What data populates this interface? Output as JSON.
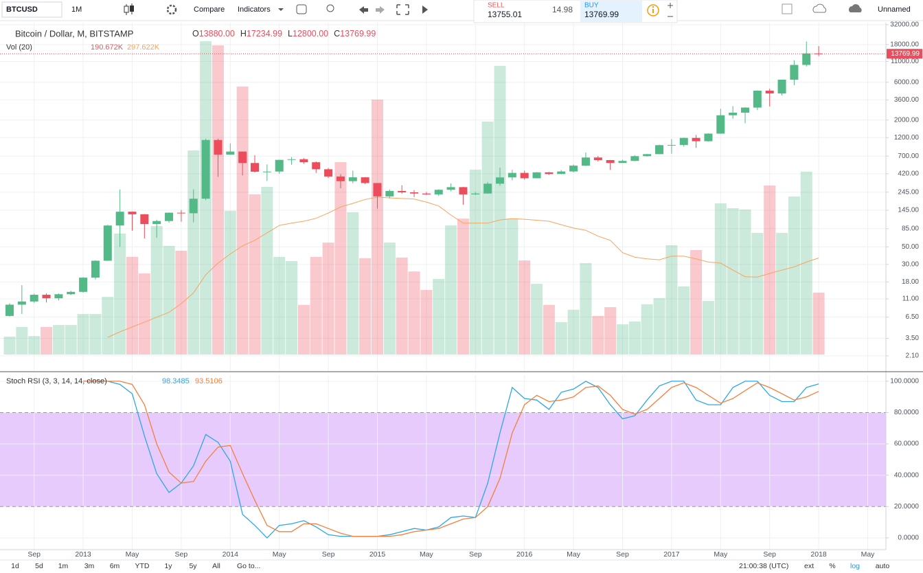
{
  "toolbar": {
    "symbol": "BTCUSD",
    "interval": "1M",
    "compare": "Compare",
    "indicators": "Indicators",
    "sell_label": "SELL",
    "sell_price": "13755.01",
    "spread": "14.98",
    "buy_label": "BUY",
    "buy_price": "13769.99",
    "layout_name": "Unnamed"
  },
  "bottom_bar": {
    "ranges": [
      "1d",
      "5d",
      "1m",
      "3m",
      "6m",
      "YTD",
      "1y",
      "5y",
      "All"
    ],
    "goto": "Go to...",
    "clock": "21:00:38 (UTC)",
    "options": [
      "ext",
      "%",
      "log",
      "auto"
    ]
  },
  "chart_data": [
    {
      "type": "candlestick",
      "title": "Bitcoin / Dollar, M, BITSTAMP",
      "categories": [
        null,
        null,
        "Sep",
        null,
        null,
        null,
        "2013",
        null,
        null,
        null,
        "May",
        null,
        null,
        null,
        "Sep",
        null,
        null,
        null,
        "2014",
        null,
        null,
        null,
        "May",
        null,
        null,
        null,
        "Sep",
        null,
        null,
        null,
        "2015",
        null,
        null,
        null,
        "May",
        null,
        null,
        null,
        "Sep",
        null,
        null,
        null,
        "2016",
        null,
        null,
        null,
        "May",
        null,
        null,
        null,
        "Sep",
        null,
        null,
        null,
        "2017",
        null,
        null,
        null,
        "May",
        null,
        null,
        null,
        "Sep",
        null,
        null,
        null,
        "2018",
        null,
        null,
        null,
        "May",
        null
      ],
      "open": [
        6.7,
        9.3,
        10.2,
        12.4,
        11.2,
        12.6,
        13.5,
        20.4,
        33.4,
        93,
        139,
        129,
        97,
        106,
        135,
        133,
        203,
        1120,
        732,
        800,
        573,
        445,
        447,
        628,
        640,
        586,
        478,
        387,
        338,
        378,
        320,
        217,
        254,
        244,
        236,
        230,
        263,
        284,
        230,
        236,
        314,
        377,
        430,
        368,
        437,
        416,
        448,
        531,
        673,
        624,
        574,
        609,
        700,
        742,
        964,
        970,
        1190,
        1080,
        1348,
        2300,
        2480,
        2875,
        4703,
        4339,
        6468,
        9947,
        13880,
        null,
        null,
        null,
        null,
        null
      ],
      "high": [
        9.7,
        16.4,
        12.8,
        12.9,
        12.9,
        13.9,
        20.7,
        33.8,
        95,
        266,
        140,
        130,
        110,
        136,
        146,
        267,
        1163,
        1163,
        1017,
        800,
        720,
        550,
        630,
        680,
        660,
        600,
        497,
        415,
        458,
        382,
        320,
        266,
        300,
        261,
        247,
        267,
        317,
        286,
        247,
        330,
        502,
        470,
        459,
        441,
        442,
        467,
        550,
        780,
        703,
        626,
        629,
        720,
        750,
        980,
        1150,
        1200,
        1295,
        1360,
        2770,
        3000,
        2910,
        4740,
        4980,
        6470,
        11400,
        19666,
        17234.99,
        null,
        null,
        null,
        null,
        null
      ],
      "low": [
        6.6,
        7.1,
        9.8,
        9.9,
        10.5,
        12.3,
        13.2,
        19.4,
        33.2,
        50,
        80,
        64,
        65,
        101,
        104,
        102,
        195,
        383,
        730,
        400,
        436,
        340,
        420,
        545,
        560,
        430,
        370,
        275,
        318,
        310,
        152,
        205,
        235,
        213,
        226,
        220,
        252,
        170,
        226,
        235,
        296,
        346,
        353,
        366,
        405,
        414,
        436,
        524,
        600,
        470,
        572,
        605,
        690,
        740,
        750,
        920,
        890,
        1070,
        1340,
        2080,
        1830,
        2670,
        2980,
        4100,
        5520,
        9500,
        12800,
        null,
        null,
        null,
        null,
        null
      ],
      "close": [
        9.3,
        10.2,
        12.4,
        11.2,
        12.6,
        13.5,
        20.4,
        33.4,
        93,
        139,
        129,
        97,
        106,
        135,
        133,
        203,
        1120,
        732,
        800,
        573,
        445,
        447,
        628,
        640,
        586,
        478,
        387,
        338,
        378,
        320,
        217,
        254,
        244,
        236,
        230,
        263,
        284,
        230,
        236,
        314,
        377,
        430,
        368,
        437,
        416,
        448,
        531,
        673,
        624,
        574,
        609,
        700,
        742,
        964,
        970,
        1190,
        1080,
        1348,
        2300,
        2480,
        2875,
        4703,
        4339,
        6468,
        9947,
        13880,
        13769.99,
        null,
        null,
        null,
        null,
        null
      ],
      "ohlc_legend": [
        {
          "key": "O",
          "label": "13880.00"
        },
        {
          "key": "H",
          "label": "17234.99"
        },
        {
          "key": "L",
          "label": "12800.00"
        },
        {
          "key": "C",
          "label": "13769.99"
        }
      ],
      "up_color": "#53b987",
      "down_color": "#eb4d5c",
      "ylim": [
        1.35,
        34000
      ],
      "yticks": [
        {
          "value": 32000,
          "label": "32000.00"
        },
        {
          "value": 18000,
          "label": "18000.00"
        },
        {
          "value": 11000,
          "label": "11000.00"
        },
        {
          "value": 6000,
          "label": "6000.00"
        },
        {
          "value": 3600,
          "label": "3600.00"
        },
        {
          "value": 2000,
          "label": "2000.00"
        },
        {
          "value": 1200,
          "label": "1200.00"
        },
        {
          "value": 700,
          "label": "700.00"
        },
        {
          "value": 420,
          "label": "420.00"
        },
        {
          "value": 245,
          "label": "245.00"
        },
        {
          "value": 145,
          "label": "145.00"
        },
        {
          "value": 85,
          "label": "85.00"
        },
        {
          "value": 50,
          "label": "50.00"
        },
        {
          "value": 30,
          "label": "30.00"
        },
        {
          "value": 18,
          "label": "18.00"
        },
        {
          "value": 11,
          "label": "11.00"
        },
        {
          "value": 6.5,
          "label": "6.50"
        },
        {
          "value": 3.5,
          "label": "3.50"
        },
        {
          "value": 2.1,
          "label": "2.10"
        }
      ],
      "log_scale": true,
      "grid": true,
      "last_price_line": true,
      "volume": {
        "title": "Vol (20)",
        "values": [
          55,
          85,
          57,
          85,
          91,
          91,
          125,
          125,
          178,
          373,
          301,
          250,
          396,
          335,
          320,
          629,
          966,
          953,
          443,
          826,
          494,
          517,
          301,
          288,
          153,
          301,
          345,
          593,
          439,
          297,
          786,
          345,
          299,
          256,
          199,
          233,
          398,
          419,
          570,
          718,
          890,
          419,
          290,
          218,
          153,
          100,
          138,
          282,
          119,
          146,
          93,
          102,
          155,
          174,
          337,
          210,
          322,
          165,
          466,
          451,
          447,
          375,
          521,
          375,
          487,
          564,
          190.672,
          null,
          null,
          null,
          null,
          null
        ],
        "last_value_label": "190.672K",
        "ma": [
          null,
          null,
          null,
          null,
          null,
          null,
          null,
          null,
          53,
          70,
          85,
          100,
          115,
          130,
          157,
          190,
          246,
          282,
          310,
          335,
          352,
          375,
          398,
          405,
          411,
          420,
          436,
          455,
          466,
          478,
          485,
          483,
          481,
          479,
          470,
          458,
          430,
          405,
          405,
          405,
          415,
          419,
          417,
          414,
          411,
          400,
          390,
          383,
          365,
          352,
          314,
          300,
          295,
          292,
          303,
          303,
          295,
          285,
          282,
          260,
          240,
          239,
          250,
          260,
          270,
          285,
          297.622,
          null,
          null,
          null,
          null,
          null
        ],
        "ma_last_label": "297.622K",
        "ma_color": "#f7a35c",
        "ylim": [
          0,
          1023
        ]
      }
    },
    {
      "type": "line",
      "title": "Stoch RSI (3, 3, 14, 14, close)",
      "series": [
        {
          "color": "#2ba7e8",
          "values": [
            null,
            null,
            null,
            null,
            null,
            null,
            100,
            100,
            100,
            98,
            92,
            65,
            41,
            29,
            35,
            46,
            66,
            61,
            49,
            15,
            8,
            0,
            8,
            9,
            11,
            7,
            2,
            1,
            1,
            1,
            1,
            2,
            4,
            6,
            5,
            7,
            13,
            14,
            13,
            35,
            67,
            96,
            89,
            88,
            82,
            93,
            95,
            100,
            96,
            85,
            76,
            78,
            88,
            97,
            100,
            100,
            88,
            85,
            85,
            96,
            100,
            100,
            91,
            87,
            87,
            96,
            98.3485,
            null,
            null,
            null,
            null,
            null
          ]
        },
        {
          "color": "#f57f3b",
          "values": [
            null,
            null,
            null,
            null,
            null,
            null,
            100,
            100,
            100,
            100,
            98,
            85,
            60,
            42,
            35,
            36,
            49,
            58,
            59,
            41,
            24,
            8,
            4,
            4,
            9,
            9,
            6,
            3,
            1,
            1,
            1,
            1,
            2,
            4,
            5,
            6,
            9,
            12,
            13,
            20,
            38,
            67,
            85,
            91,
            87,
            88,
            90,
            96,
            97,
            91,
            82,
            79,
            82,
            89,
            96,
            99,
            96,
            91,
            86,
            89,
            94,
            99,
            96,
            92,
            88,
            90,
            93.5106,
            null,
            null,
            null,
            null,
            null
          ]
        }
      ],
      "ylim": [
        -7.5,
        103.9
      ],
      "yticks": [
        {
          "value": 100,
          "label": "100.0000"
        },
        {
          "value": 80,
          "label": "80.0000"
        },
        {
          "value": 60,
          "label": "60.0000"
        },
        {
          "value": 40,
          "label": "40.0000"
        },
        {
          "value": 20,
          "label": "20.0000"
        },
        {
          "value": 0,
          "label": "0.0000"
        }
      ],
      "band": {
        "from": 20,
        "to": 80,
        "color": "#e7cbfc"
      },
      "grid": true
    }
  ]
}
